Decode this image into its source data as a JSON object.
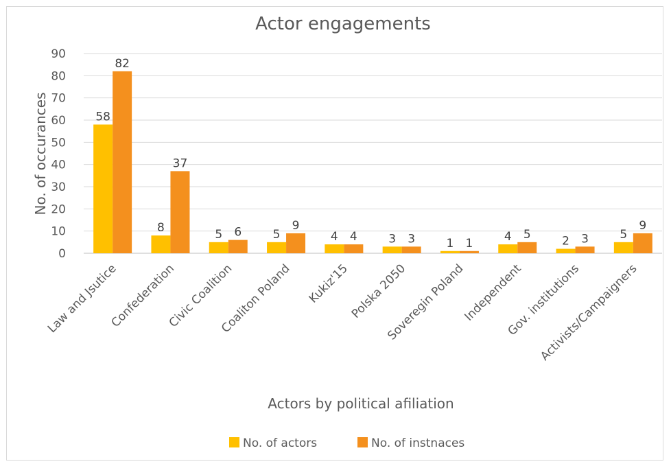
{
  "chart_data": {
    "type": "bar",
    "title": "Actor engagements",
    "xlabel": "Actors by political afiliation",
    "ylabel": "No. of occurances",
    "ylim": [
      0,
      90
    ],
    "yticks": [
      0,
      10,
      20,
      30,
      40,
      50,
      60,
      70,
      80,
      90
    ],
    "categories": [
      "Law and Jsutice",
      "Confederation",
      "Civic Coalition",
      "Coaliton Poland",
      "Kukiz'15",
      "Polska 2050",
      "Soveregin Poland",
      "Independent",
      "Gov. institutions",
      "Activists/Campaigners"
    ],
    "series": [
      {
        "name": "No. of  actors",
        "color": "#ffc000",
        "values": [
          58,
          8,
          5,
          5,
          4,
          3,
          1,
          4,
          2,
          5
        ]
      },
      {
        "name": "No. of instnaces",
        "color": "#f4901e",
        "values": [
          82,
          37,
          6,
          9,
          4,
          3,
          1,
          5,
          3,
          9
        ]
      }
    ],
    "grid": true,
    "legend_position": "bottom",
    "data_labels": true
  }
}
